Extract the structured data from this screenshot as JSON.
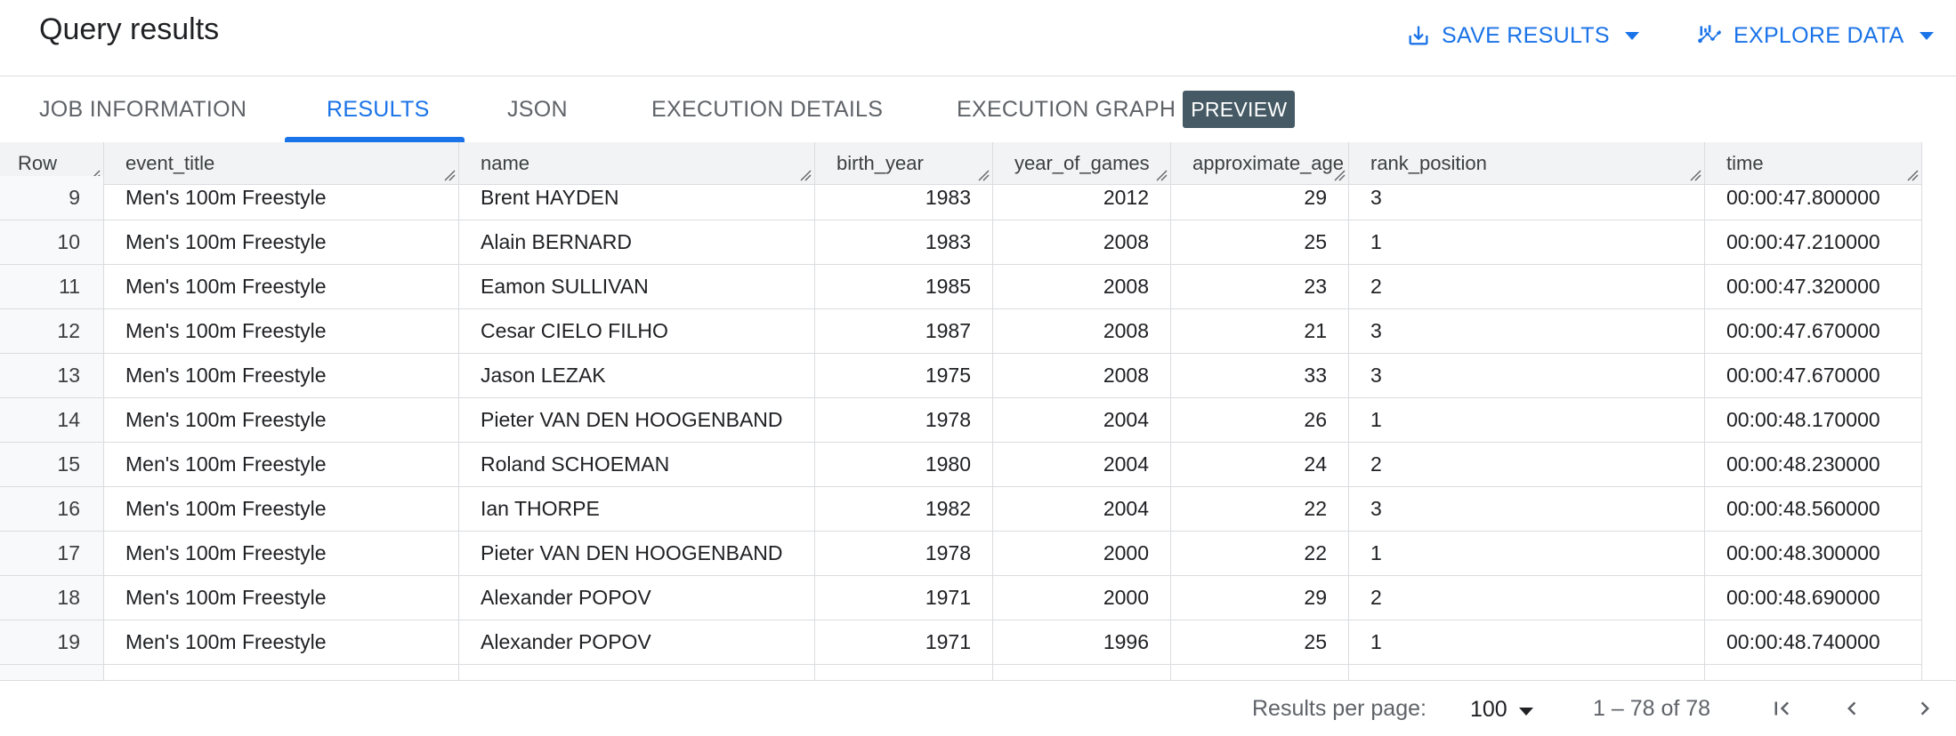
{
  "header": {
    "title": "Query results",
    "save_results_label": "SAVE RESULTS",
    "explore_data_label": "EXPLORE DATA"
  },
  "tabs": [
    {
      "label": "JOB INFORMATION"
    },
    {
      "label": "RESULTS",
      "active": true
    },
    {
      "label": "JSON"
    },
    {
      "label": "EXECUTION DETAILS"
    },
    {
      "label": "EXECUTION GRAPH",
      "badge": "PREVIEW"
    }
  ],
  "table": {
    "columns": [
      "Row",
      "event_title",
      "name",
      "birth_year",
      "year_of_games",
      "approximate_age",
      "rank_position",
      "time"
    ],
    "rows": [
      {
        "row": "9",
        "event_title": "Men's 100m Freestyle",
        "name": "Brent HAYDEN",
        "birth_year": "1983",
        "year_of_games": "2012",
        "approximate_age": "29",
        "rank_position": "3",
        "time": "00:00:47.800000"
      },
      {
        "row": "10",
        "event_title": "Men's 100m Freestyle",
        "name": "Alain BERNARD",
        "birth_year": "1983",
        "year_of_games": "2008",
        "approximate_age": "25",
        "rank_position": "1",
        "time": "00:00:47.210000"
      },
      {
        "row": "11",
        "event_title": "Men's 100m Freestyle",
        "name": "Eamon SULLIVAN",
        "birth_year": "1985",
        "year_of_games": "2008",
        "approximate_age": "23",
        "rank_position": "2",
        "time": "00:00:47.320000"
      },
      {
        "row": "12",
        "event_title": "Men's 100m Freestyle",
        "name": "Cesar CIELO FILHO",
        "birth_year": "1987",
        "year_of_games": "2008",
        "approximate_age": "21",
        "rank_position": "3",
        "time": "00:00:47.670000"
      },
      {
        "row": "13",
        "event_title": "Men's 100m Freestyle",
        "name": "Jason LEZAK",
        "birth_year": "1975",
        "year_of_games": "2008",
        "approximate_age": "33",
        "rank_position": "3",
        "time": "00:00:47.670000"
      },
      {
        "row": "14",
        "event_title": "Men's 100m Freestyle",
        "name": "Pieter VAN DEN HOOGENBAND",
        "birth_year": "1978",
        "year_of_games": "2004",
        "approximate_age": "26",
        "rank_position": "1",
        "time": "00:00:48.170000"
      },
      {
        "row": "15",
        "event_title": "Men's 100m Freestyle",
        "name": "Roland SCHOEMAN",
        "birth_year": "1980",
        "year_of_games": "2004",
        "approximate_age": "24",
        "rank_position": "2",
        "time": "00:00:48.230000"
      },
      {
        "row": "16",
        "event_title": "Men's 100m Freestyle",
        "name": "Ian THORPE",
        "birth_year": "1982",
        "year_of_games": "2004",
        "approximate_age": "22",
        "rank_position": "3",
        "time": "00:00:48.560000"
      },
      {
        "row": "17",
        "event_title": "Men's 100m Freestyle",
        "name": "Pieter VAN DEN HOOGENBAND",
        "birth_year": "1978",
        "year_of_games": "2000",
        "approximate_age": "22",
        "rank_position": "1",
        "time": "00:00:48.300000"
      },
      {
        "row": "18",
        "event_title": "Men's 100m Freestyle",
        "name": "Alexander POPOV",
        "birth_year": "1971",
        "year_of_games": "2000",
        "approximate_age": "29",
        "rank_position": "2",
        "time": "00:00:48.690000"
      },
      {
        "row": "19",
        "event_title": "Men's 100m Freestyle",
        "name": "Alexander POPOV",
        "birth_year": "1971",
        "year_of_games": "1996",
        "approximate_age": "25",
        "rank_position": "1",
        "time": "00:00:48.740000"
      }
    ]
  },
  "footer": {
    "per_page_label": "Results per page:",
    "per_page_value": "100",
    "range_text": "1 – 78 of 78"
  },
  "icons": {
    "save": "download-icon",
    "explore": "chart-icon",
    "first": "first-page-icon",
    "prev": "chevron-left-icon",
    "next": "chevron-right-icon"
  },
  "colors": {
    "accent": "#1a73e8",
    "badge": "#455a64",
    "header_bg": "#f1f3f4",
    "border": "#dadce0"
  }
}
